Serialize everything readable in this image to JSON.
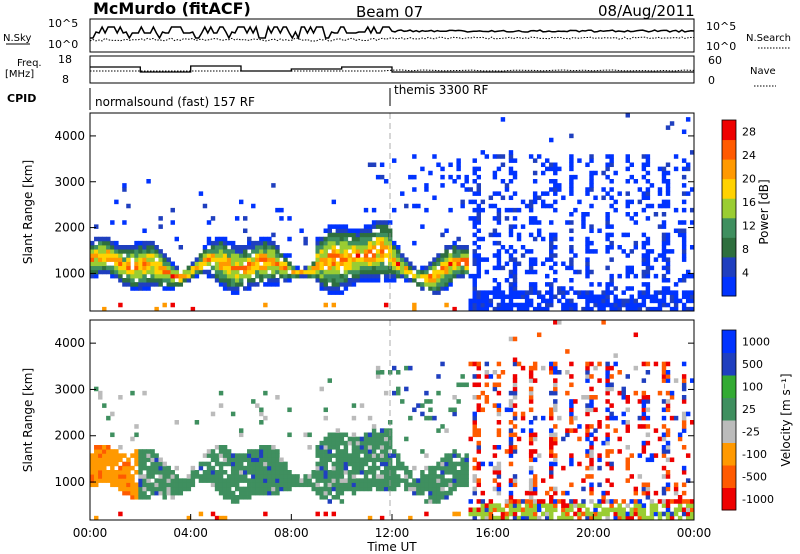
{
  "header": {
    "station": "McMurdo (fitACF)",
    "beam": "Beam 07",
    "date": "08/Aug/2011"
  },
  "nsky_panel": {
    "left_label": "N.Sky",
    "right_label": "N.Search",
    "left_ticks": [
      "10^5",
      "10^0"
    ],
    "right_ticks": [
      "10^5",
      "10^0"
    ]
  },
  "freq_panel": {
    "left_label_1": "Freq.",
    "left_label_2": "[MHz]",
    "right_label": "Nave",
    "left_ticks": [
      "18",
      "8"
    ],
    "right_ticks": [
      "60",
      "0"
    ]
  },
  "cpid_panel": {
    "label": "CPID",
    "modes": [
      "normalsound (fast) 157 RF",
      "themis 3300 RF"
    ]
  },
  "colors": {
    "power": [
      "#0033ff",
      "#1f3fbf",
      "#2e6f3e",
      "#3f8f5f",
      "#9acd32",
      "#ffd200",
      "#ff9900",
      "#ff5a00",
      "#ee0000"
    ],
    "velocity": [
      "#ee0000",
      "#ff5a00",
      "#ff9900",
      "#bbbbbb",
      "#3f8f5f",
      "#33aa33",
      "#1f3fbf",
      "#0033ff"
    ]
  },
  "chart_data": [
    {
      "type": "heatmap",
      "name": "power",
      "ylabel": "Slant Range [km]",
      "ylim": [
        180,
        4500
      ],
      "yticks": [
        "1000",
        "2000",
        "3000",
        "4000"
      ],
      "xlim": [
        0,
        24
      ],
      "colorbar_label": "Power [dB]",
      "colorbar_ticks": [
        "4",
        "8",
        "12",
        "16",
        "20",
        "24",
        "28"
      ],
      "colorbar_range": [
        0,
        30
      ]
    },
    {
      "type": "heatmap",
      "name": "velocity",
      "ylabel": "Slant Range [km]",
      "ylim": [
        180,
        4500
      ],
      "yticks": [
        "1000",
        "2000",
        "3000",
        "4000"
      ],
      "xlim": [
        0,
        24
      ],
      "xlabel": "Time UT",
      "xticks": [
        "00:00",
        "04:00",
        "08:00",
        "12:00",
        "16:00",
        "20:00",
        "00:00"
      ],
      "colorbar_label": "Velocity [m s⁻¹]",
      "colorbar_ticks": [
        "1000",
        "500",
        "100",
        "25",
        "-25",
        "-100",
        "-500",
        "-1000"
      ]
    }
  ]
}
